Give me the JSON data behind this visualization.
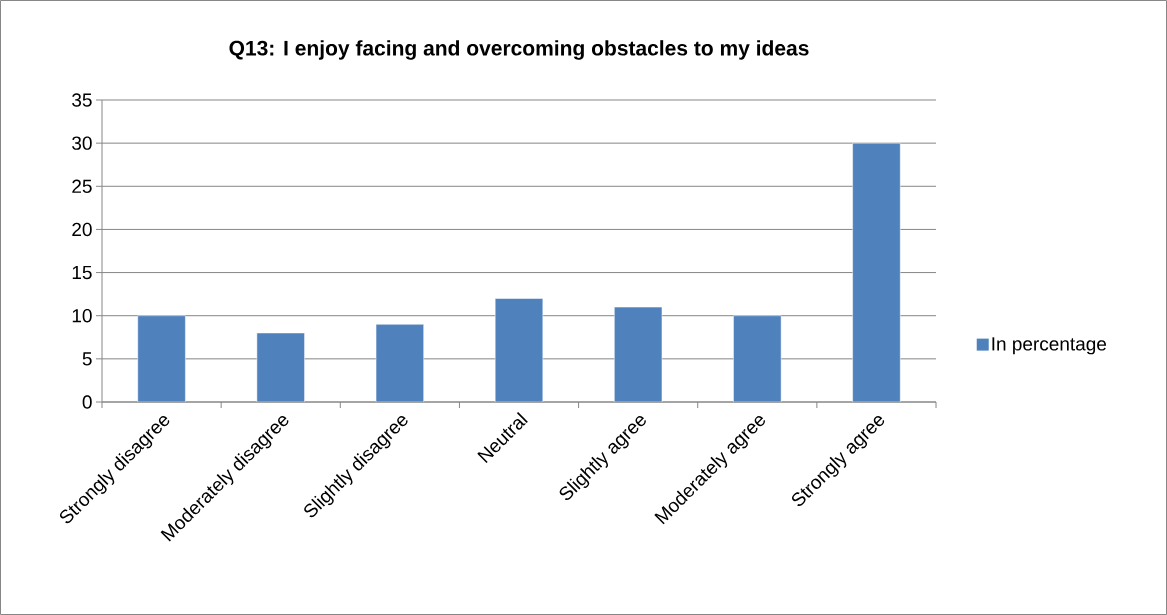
{
  "chart_data": {
    "type": "bar",
    "title": "Q13: I enjoy facing and overcoming obstacles to my ideas",
    "categories": [
      "Strongly disagree",
      "Moderately disagree",
      "Slightly disagree",
      "Neutral",
      "Slightly agree",
      "Moderately agree",
      "Strongly agree"
    ],
    "series": [
      {
        "name": "In percentage",
        "color": "#4f81bd",
        "values": [
          10,
          8,
          9,
          12,
          11,
          10,
          30
        ]
      }
    ],
    "ylim": [
      0,
      35
    ],
    "yticks": [
      0,
      5,
      10,
      15,
      20,
      25,
      30,
      35
    ],
    "grid": "y",
    "legend": "right"
  }
}
